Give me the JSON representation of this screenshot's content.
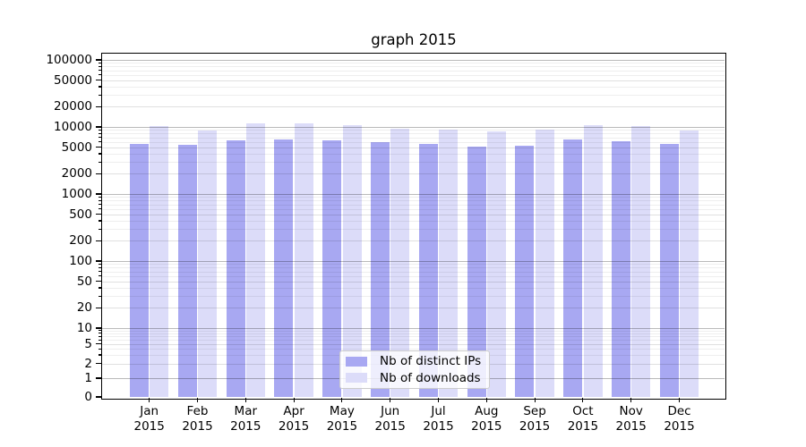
{
  "figure_title": "graph 2015",
  "chart_data": {
    "type": "bar",
    "title": "graph 2015",
    "yscale": "symlog",
    "ylim": [
      0,
      123000
    ],
    "grid": true,
    "legend_position": "lower center",
    "x_categories": [
      "Jan 2015",
      "Feb 2015",
      "Mar 2015",
      "Apr 2015",
      "May 2015",
      "Jun 2015",
      "Jul 2015",
      "Aug 2015",
      "Sep 2015",
      "Oct 2015",
      "Nov 2015",
      "Dec 2015"
    ],
    "y_tick_labels": [
      100000,
      50000,
      20000,
      10000,
      5000,
      2000,
      1000,
      500,
      200,
      100,
      50,
      20,
      10,
      5,
      2,
      1,
      0
    ],
    "series": [
      {
        "name": "Nb of distinct IPs",
        "color": "#a8a8f2",
        "values": [
          5600,
          5450,
          6300,
          6500,
          6400,
          5900,
          5500,
          5100,
          5250,
          6450,
          6200,
          5650
        ]
      },
      {
        "name": "Nb of downloads",
        "color": "#dcdcf9",
        "values": [
          10400,
          8950,
          11400,
          11300,
          10600,
          9400,
          9050,
          8500,
          9000,
          10700,
          10400,
          8950
        ]
      }
    ]
  },
  "colors": {
    "background": "#ffffff",
    "axis": "#000000",
    "grid_decade": "rgba(0,0,0,0.27)",
    "grid_labeled": "rgba(0,0,0,0.12)",
    "grid_minor": "rgba(0,0,0,0.065)",
    "legend_border": "#cccccc"
  }
}
